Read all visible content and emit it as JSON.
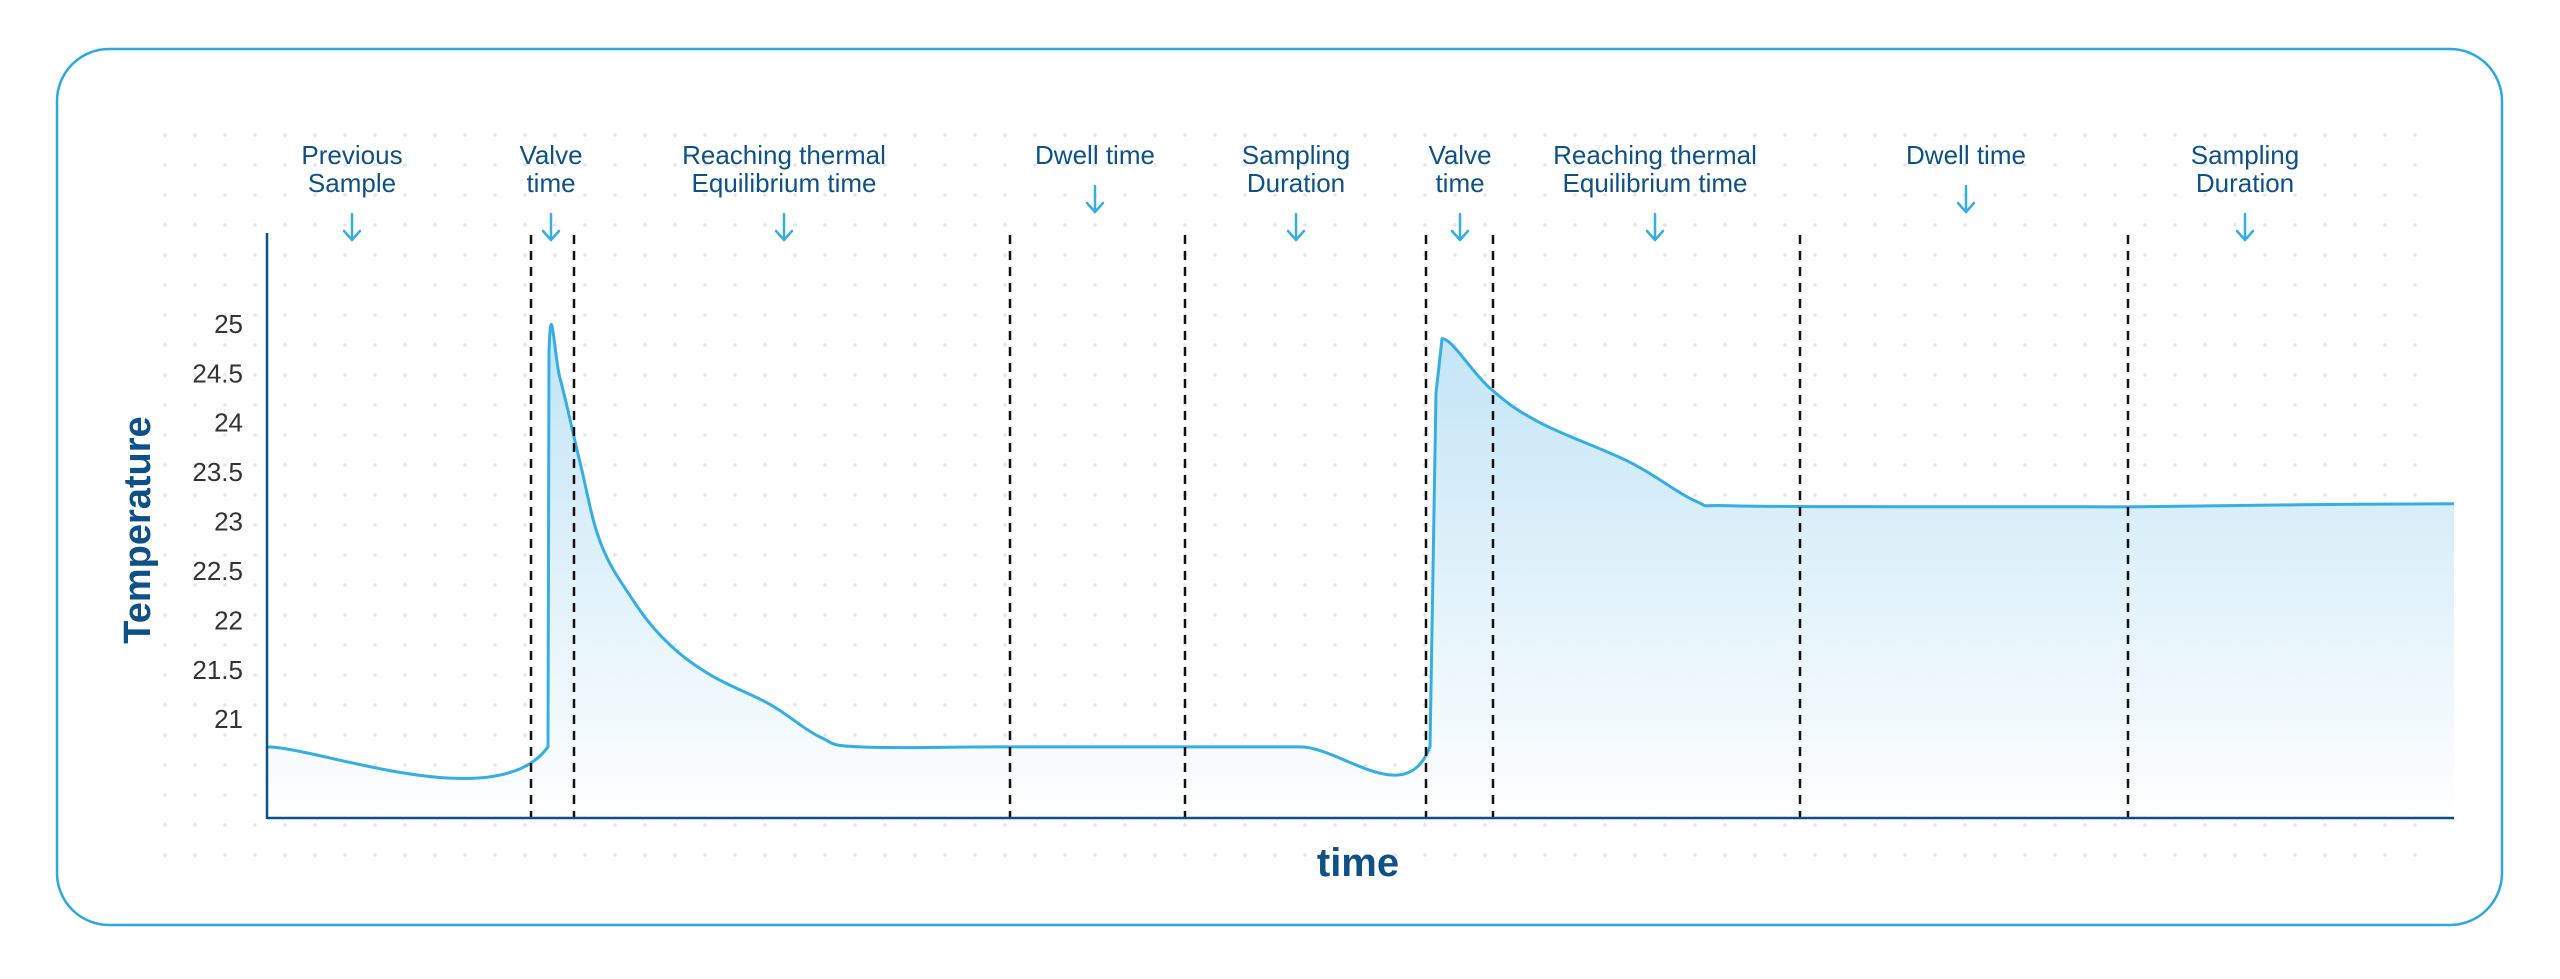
{
  "chart_data": {
    "type": "area",
    "title": "",
    "xlabel": "time",
    "ylabel": "Temperature",
    "x_ticks": "none",
    "ylim": [
      20,
      25.9
    ],
    "y_ticks": [
      {
        "value": 21,
        "label": "21"
      },
      {
        "value": 21.5,
        "label": "21.5"
      },
      {
        "value": 22,
        "label": "22"
      },
      {
        "value": 22.5,
        "label": "22.5"
      },
      {
        "value": 23,
        "label": "23"
      },
      {
        "value": 23.5,
        "label": "23.5"
      },
      {
        "value": 24,
        "label": "24"
      },
      {
        "value": 24.5,
        "label": "24.5"
      },
      {
        "value": 25,
        "label": "25"
      }
    ],
    "grid": "dotted background",
    "phase_labels": [
      [
        "Previous",
        "Sample"
      ],
      [
        "Valve",
        "time"
      ],
      [
        "Reaching thermal",
        "Equilibrium time"
      ],
      [
        "Dwell time"
      ],
      [
        "Sampling",
        "Duration"
      ],
      [
        "Valve",
        "time"
      ],
      [
        "Reaching thermal",
        "Equilibrium time"
      ],
      [
        "Dwell time"
      ],
      [
        "Sampling",
        "Duration"
      ]
    ],
    "series": [
      {
        "values": [
          20.72,
          20.72,
          24.72,
          24.45,
          23.6,
          22.8,
          22.25,
          21.8,
          21.45,
          21.15,
          20.82,
          20.72,
          20.72,
          20.72,
          20.72,
          20.72,
          24.3,
          24.85,
          24.35,
          24.0,
          23.6,
          23.21,
          23.16,
          23.15,
          23.15,
          23.15,
          23.17,
          23.18
        ]
      }
    ],
    "colors": {
      "frame": "#2ea8e0",
      "line": "#35aee3",
      "fill_top": "#bfe3f6",
      "fill_bottom": "#ffffff",
      "text": "#0d5186",
      "arrow": "#35aee3",
      "tick_text": "#333333",
      "axis": "#0d5186",
      "divider": "#111111",
      "grid_dot": "#e2e6ea"
    },
    "icons": {
      "phase_arrow": "arrow-down-icon"
    }
  }
}
